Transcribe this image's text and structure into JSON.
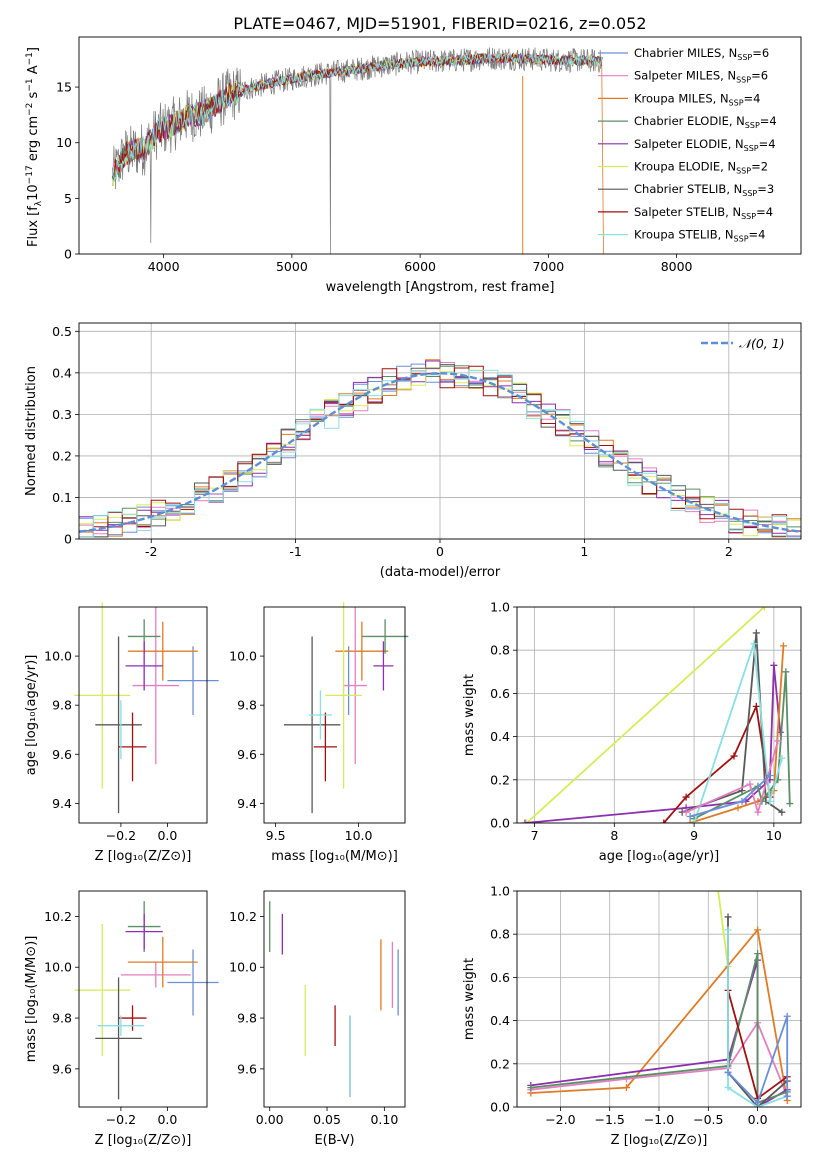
{
  "title": "PLATE=0467, MJD=51901, FIBERID=0216, z=0.052",
  "colors": {
    "chabrier_miles": "#6a8fd8",
    "salpeter_miles": "#e27fc2",
    "kroupa_miles": "#e07b25",
    "chabrier_elodie": "#5a8f66",
    "salpeter_elodie": "#8e2faf",
    "kroupa_elodie": "#d6eb5a",
    "chabrier_stelib": "#595959",
    "salpeter_stelib": "#a01010",
    "kroupa_stelib": "#8adfe2",
    "data": "#7a7a7a",
    "normal": "#5b8fd8"
  },
  "chart_data": [
    {
      "type": "line",
      "id": "spectrum",
      "xlabel": "wavelength [Angstrom, rest frame]",
      "ylabel_parts": {
        "pre": "Flux [f",
        "sub": "λ",
        "mid": "10",
        "sup1": "−17",
        "post": " erg cm",
        "sup2": "−2",
        "post2": " s",
        "sup3": "−1",
        "post3": " A",
        "sup4": "−1",
        "end": "]"
      },
      "xlim": [
        3340,
        8970
      ],
      "ylim": [
        0,
        19.5
      ],
      "xticks": [
        4000,
        5000,
        6000,
        7000,
        8000
      ],
      "yticks": [
        0,
        5,
        10,
        15
      ],
      "legend": [
        {
          "label": "Chabrier MILES, N",
          "sub": "SSP",
          "val": "=6",
          "color": "#6a8fd8"
        },
        {
          "label": "Salpeter MILES, N",
          "sub": "SSP",
          "val": "=6",
          "color": "#e27fc2"
        },
        {
          "label": "Kroupa MILES, N",
          "sub": "SSP",
          "val": "=4",
          "color": "#e07b25"
        },
        {
          "label": "Chabrier ELODIE, N",
          "sub": "SSP",
          "val": "=4",
          "color": "#5a8f66"
        },
        {
          "label": "Salpeter ELODIE, N",
          "sub": "SSP",
          "val": "=4",
          "color": "#8e2faf"
        },
        {
          "label": "Kroupa ELODIE, N",
          "sub": "SSP",
          "val": "=2",
          "color": "#d6eb5a"
        },
        {
          "label": "Chabrier STELIB, N",
          "sub": "SSP",
          "val": "=3",
          "color": "#595959"
        },
        {
          "label": "Salpeter STELIB, N",
          "sub": "SSP",
          "val": "=4",
          "color": "#a01010"
        },
        {
          "label": "Kroupa STELIB, N",
          "sub": "SSP",
          "val": "=4",
          "color": "#8adfe2"
        }
      ],
      "continuum": [
        [
          3600,
          7
        ],
        [
          3700,
          9
        ],
        [
          3850,
          9.5
        ],
        [
          3950,
          11
        ],
        [
          4050,
          11.5
        ],
        [
          4200,
          12.5
        ],
        [
          4300,
          12.6
        ],
        [
          4500,
          14.2
        ],
        [
          4700,
          15
        ],
        [
          4900,
          15.5
        ],
        [
          5100,
          16
        ],
        [
          5300,
          16.3
        ],
        [
          5500,
          16.6
        ],
        [
          5700,
          16.9
        ],
        [
          5900,
          17.2
        ],
        [
          6100,
          17.3
        ],
        [
          6300,
          17.4
        ],
        [
          6500,
          17.6
        ],
        [
          6700,
          17.6
        ],
        [
          6900,
          17.5
        ],
        [
          7100,
          17.4
        ],
        [
          7300,
          17.4
        ],
        [
          7420,
          17.3
        ]
      ]
    },
    {
      "type": "bar",
      "id": "residuals",
      "xlabel": "(data-model)/error",
      "ylabel": "Normed distribution",
      "xlim": [
        -2.5,
        2.5
      ],
      "ylim": [
        0,
        0.52
      ],
      "xticks": [
        -2,
        -1,
        0,
        1,
        2
      ],
      "yticks": [
        0.0,
        0.1,
        0.2,
        0.3,
        0.4,
        0.5
      ],
      "legend": [
        {
          "label": "𝒩(0, 1)",
          "color": "#5b8fd8"
        }
      ],
      "bin_width": 0.1,
      "bins_start": -2.5,
      "base_variation_seed": 7
    },
    {
      "type": "scatter",
      "id": "z_age",
      "xlabel": "Z [log₁₀(Z/Z⊙)]",
      "ylabel": "age  [log₁₀(age/yr)]",
      "xlim": [
        -0.38,
        0.17
      ],
      "ylim": [
        9.32,
        10.2
      ],
      "xticks": [
        -0.2,
        0.0
      ],
      "xticklabels": [
        "−0.2",
        "0.0"
      ],
      "yticks": [
        9.4,
        9.6,
        9.8,
        10.0
      ],
      "yticklabels": [
        "9.4",
        "9.6",
        "9.8",
        "10.0"
      ],
      "points": [
        {
          "x": 0.11,
          "xe": 0.11,
          "y": 9.9,
          "ye": 0.14,
          "color": "#6a8fd8"
        },
        {
          "x": -0.05,
          "xe": 0.1,
          "y": 9.88,
          "ye": 0.32,
          "color": "#e27fc2"
        },
        {
          "x": -0.02,
          "xe": 0.15,
          "y": 10.02,
          "ye": 0.12,
          "color": "#e07b25"
        },
        {
          "x": -0.1,
          "xe": 0.07,
          "y": 10.08,
          "ye": 0.07,
          "color": "#5a8f66"
        },
        {
          "x": -0.1,
          "xe": 0.08,
          "y": 9.96,
          "ye": 0.1,
          "color": "#8e2faf"
        },
        {
          "x": -0.28,
          "xe": 0.12,
          "y": 9.84,
          "ye": 0.38,
          "color": "#d6eb5a"
        },
        {
          "x": -0.21,
          "xe": 0.1,
          "y": 9.72,
          "ye": 0.36,
          "color": "#595959"
        },
        {
          "x": -0.15,
          "xe": 0.06,
          "y": 9.63,
          "ye": 0.14,
          "color": "#a01010"
        },
        {
          "x": -0.2,
          "xe": 0.0,
          "y": 9.7,
          "ye": 0.12,
          "color": "#8adfe2"
        }
      ]
    },
    {
      "type": "scatter",
      "id": "mass_age",
      "xlabel": "mass [log₁₀(M/M⊙)]",
      "ylabel": "",
      "xlim": [
        9.43,
        10.28
      ],
      "ylim": [
        9.32,
        10.2
      ],
      "xticks": [
        9.5,
        10.0
      ],
      "xticklabels": [
        "9.5",
        "10.0"
      ],
      "yticks": [
        9.4,
        9.6,
        9.8,
        10.0
      ],
      "yticklabels": [
        "9.4",
        "9.6",
        "9.8",
        "10.0"
      ],
      "points": [
        {
          "x": 9.94,
          "xe": 0.0,
          "y": 9.9,
          "ye": 0.14,
          "color": "#6a8fd8"
        },
        {
          "x": 9.98,
          "xe": 0.07,
          "y": 9.88,
          "ye": 0.32,
          "color": "#e27fc2"
        },
        {
          "x": 10.02,
          "xe": 0.16,
          "y": 10.02,
          "ye": 0.12,
          "color": "#e07b25"
        },
        {
          "x": 10.16,
          "xe": 0.14,
          "y": 10.08,
          "ye": 0.07,
          "color": "#5a8f66"
        },
        {
          "x": 10.15,
          "xe": 0.06,
          "y": 9.96,
          "ye": 0.1,
          "color": "#8e2faf"
        },
        {
          "x": 9.91,
          "xe": 0.11,
          "y": 9.84,
          "ye": 0.38,
          "color": "#d6eb5a"
        },
        {
          "x": 9.72,
          "xe": 0.17,
          "y": 9.72,
          "ye": 0.36,
          "color": "#595959"
        },
        {
          "x": 9.8,
          "xe": 0.07,
          "y": 9.63,
          "ye": 0.14,
          "color": "#a01010"
        },
        {
          "x": 9.77,
          "xe": 0.07,
          "y": 9.76,
          "ye": 0.1,
          "color": "#8adfe2"
        }
      ]
    },
    {
      "type": "line",
      "id": "age_weight",
      "xlabel": "age  [log₁₀(age/yr)]",
      "ylabel": "mass weight",
      "xlim": [
        6.78,
        10.34
      ],
      "ylim": [
        0,
        1
      ],
      "xticks": [
        7,
        8,
        9,
        10
      ],
      "xticklabels": [
        "7",
        "8",
        "9",
        "10"
      ],
      "yticks": [
        0,
        0.2,
        0.4,
        0.6,
        0.8,
        1.0
      ],
      "yticklabels": [
        "0.0",
        "0.2",
        "0.4",
        "0.6",
        "0.8",
        "1.0"
      ],
      "series": [
        {
          "color": "#d6eb5a",
          "pts": [
            [
              6.9,
              0.0
            ],
            [
              9.88,
              1.0
            ]
          ]
        },
        {
          "color": "#8e2faf",
          "pts": [
            [
              6.88,
              0.0
            ],
            [
              8.9,
              0.07
            ],
            [
              9.65,
              0.1
            ],
            [
              9.95,
              0.2
            ],
            [
              10.0,
              0.73
            ],
            [
              10.08,
              0.42
            ]
          ]
        },
        {
          "color": "#a01010",
          "pts": [
            [
              8.62,
              0.0
            ],
            [
              8.9,
              0.12
            ],
            [
              9.5,
              0.31
            ],
            [
              9.78,
              0.54
            ],
            [
              9.95,
              0.12
            ]
          ]
        },
        {
          "color": "#e07b25",
          "pts": [
            [
              8.95,
              0.0
            ],
            [
              9.55,
              0.07
            ],
            [
              9.8,
              0.1
            ],
            [
              10.0,
              0.15
            ],
            [
              10.12,
              0.82
            ]
          ]
        },
        {
          "color": "#595959",
          "pts": [
            [
              8.85,
              0.05
            ],
            [
              9.6,
              0.15
            ],
            [
              9.78,
              0.88
            ],
            [
              9.9,
              0.1
            ],
            [
              10.1,
              0.05
            ]
          ]
        },
        {
          "color": "#5a8f66",
          "pts": [
            [
              9.0,
              0.02
            ],
            [
              9.8,
              0.17
            ],
            [
              9.85,
              0.1
            ],
            [
              10.05,
              0.2
            ],
            [
              10.15,
              0.7
            ],
            [
              10.2,
              0.09
            ]
          ]
        },
        {
          "color": "#8adfe2",
          "pts": [
            [
              9.0,
              0.0
            ],
            [
              9.75,
              0.83
            ],
            [
              9.95,
              0.1
            ],
            [
              10.1,
              0.3
            ]
          ]
        },
        {
          "color": "#e27fc2",
          "pts": [
            [
              8.9,
              0.05
            ],
            [
              9.7,
              0.18
            ],
            [
              9.8,
              0.05
            ],
            [
              10.05,
              0.38
            ]
          ]
        },
        {
          "color": "#6a8fd8",
          "pts": [
            [
              8.95,
              0.03
            ],
            [
              9.6,
              0.1
            ],
            [
              9.95,
              0.22
            ]
          ]
        }
      ]
    },
    {
      "type": "scatter",
      "id": "z_mass",
      "xlabel": "Z [log₁₀(Z/Z⊙)]",
      "ylabel": "mass [log₁₀(M/M⊙)]",
      "xlim": [
        -0.38,
        0.17
      ],
      "ylim": [
        9.45,
        10.3
      ],
      "xticks": [
        -0.2,
        0.0
      ],
      "xticklabels": [
        "−0.2",
        "0.0"
      ],
      "yticks": [
        9.6,
        9.8,
        10.0,
        10.2
      ],
      "yticklabels": [
        "9.6",
        "9.8",
        "10.0",
        "10.2"
      ],
      "points": [
        {
          "x": 0.11,
          "xe": 0.11,
          "y": 9.94,
          "ye": 0.13,
          "color": "#6a8fd8"
        },
        {
          "x": -0.05,
          "xe": 0.15,
          "y": 9.97,
          "ye": 0.05,
          "color": "#e27fc2"
        },
        {
          "x": -0.02,
          "xe": 0.15,
          "y": 10.02,
          "ye": 0.1,
          "color": "#e07b25"
        },
        {
          "x": -0.1,
          "xe": 0.07,
          "y": 10.16,
          "ye": 0.1,
          "color": "#5a8f66"
        },
        {
          "x": -0.1,
          "xe": 0.08,
          "y": 10.14,
          "ye": 0.07,
          "color": "#8e2faf"
        },
        {
          "x": -0.28,
          "xe": 0.12,
          "y": 9.91,
          "ye": 0.26,
          "color": "#d6eb5a"
        },
        {
          "x": -0.21,
          "xe": 0.1,
          "y": 9.72,
          "ye": 0.24,
          "color": "#595959"
        },
        {
          "x": -0.15,
          "xe": 0.06,
          "y": 9.8,
          "ye": 0.05,
          "color": "#a01010"
        },
        {
          "x": -0.2,
          "xe": 0.1,
          "y": 9.77,
          "ye": 0.04,
          "color": "#8adfe2"
        }
      ]
    },
    {
      "type": "scatter",
      "id": "ebv_mass",
      "xlabel": "E(B-V)",
      "ylabel": "",
      "xlim": [
        -0.005,
        0.118
      ],
      "ylim": [
        9.45,
        10.3
      ],
      "xticks": [
        0.0,
        0.05,
        0.1
      ],
      "xticklabels": [
        "0.00",
        "0.05",
        "0.10"
      ],
      "yticks": [
        9.6,
        9.8,
        10.0,
        10.2
      ],
      "yticklabels": [
        "9.6",
        "9.8",
        "10.0",
        "10.2"
      ],
      "points": [
        {
          "x": 0.112,
          "xe": 0,
          "y": 9.94,
          "ye": 0.13,
          "color": "#6a8fd8"
        },
        {
          "x": 0.107,
          "xe": 0,
          "y": 9.97,
          "ye": 0.13,
          "color": "#e27fc2"
        },
        {
          "x": 0.097,
          "xe": 0,
          "y": 9.97,
          "ye": 0.14,
          "color": "#e07b25"
        },
        {
          "x": 0.0,
          "xe": 0,
          "y": 10.16,
          "ye": 0.1,
          "color": "#5a8f66"
        },
        {
          "x": 0.011,
          "xe": 0,
          "y": 10.13,
          "ye": 0.08,
          "color": "#8e2faf"
        },
        {
          "x": 0.031,
          "xe": 0,
          "y": 9.79,
          "ye": 0.14,
          "color": "#d6eb5a"
        },
        {
          "x": 0.07,
          "xe": 0,
          "y": 9.65,
          "ye": 0.16,
          "color": "#595959"
        },
        {
          "x": 0.057,
          "xe": 0,
          "y": 9.77,
          "ye": 0.08,
          "color": "#a01010"
        },
        {
          "x": 0.07,
          "xe": 0,
          "y": 9.65,
          "ye": 0.16,
          "color": "#8adfe2"
        }
      ]
    },
    {
      "type": "line",
      "id": "z_weight",
      "xlabel": "Z [log₁₀(Z/Z⊙)]",
      "ylabel": "mass weight",
      "xlim": [
        -2.44,
        0.44
      ],
      "ylim": [
        0,
        1
      ],
      "xticks": [
        -2.0,
        -1.5,
        -1.0,
        -0.5,
        0.0
      ],
      "xticklabels": [
        "−2.0",
        "−1.5",
        "−1.0",
        "−0.5",
        "0.0"
      ],
      "yticks": [
        0,
        0.2,
        0.4,
        0.6,
        0.8,
        1.0
      ],
      "yticklabels": [
        "0.0",
        "0.2",
        "0.4",
        "0.6",
        "0.8",
        "1.0"
      ],
      "series": [
        {
          "color": "#d6eb5a",
          "pts": [
            [
              -0.4,
              1.0
            ],
            [
              -0.3,
              0.65
            ]
          ]
        },
        {
          "color": "#e07b25",
          "pts": [
            [
              -2.3,
              0.065
            ],
            [
              -1.33,
              0.09
            ],
            [
              0.0,
              0.82
            ],
            [
              0.3,
              0.03
            ]
          ]
        },
        {
          "color": "#e27fc2",
          "pts": [
            [
              -2.3,
              0.08
            ],
            [
              -1.33,
              0.13
            ],
            [
              -0.3,
              0.18
            ],
            [
              0.0,
              0.39
            ],
            [
              0.3,
              0.05
            ]
          ]
        },
        {
          "color": "#8e2faf",
          "pts": [
            [
              -2.3,
              0.1
            ],
            [
              -0.3,
              0.22
            ],
            [
              0.0,
              0.68
            ],
            [
              0.0,
              0.0
            ],
            [
              0.3,
              0.08
            ]
          ]
        },
        {
          "color": "#5a8f66",
          "pts": [
            [
              -2.3,
              0.09
            ],
            [
              -0.3,
              0.19
            ],
            [
              0.0,
              0.71
            ],
            [
              0.0,
              0.02
            ],
            [
              0.3,
              0.07
            ]
          ]
        },
        {
          "color": "#595959",
          "pts": [
            [
              -0.3,
              0.88
            ],
            [
              -0.3,
              0.16
            ],
            [
              0.0,
              0.0
            ],
            [
              0.3,
              0.12
            ]
          ]
        },
        {
          "color": "#a01010",
          "pts": [
            [
              -0.3,
              0.54
            ],
            [
              0.0,
              0.04
            ],
            [
              0.3,
              0.14
            ]
          ]
        },
        {
          "color": "#8adfe2",
          "pts": [
            [
              -0.3,
              0.82
            ],
            [
              -0.3,
              0.09
            ],
            [
              0.0,
              0.0
            ],
            [
              0.3,
              0.05
            ]
          ]
        },
        {
          "color": "#6a8fd8",
          "pts": [
            [
              -0.3,
              0.16
            ],
            [
              0.0,
              0.02
            ],
            [
              0.3,
              0.42
            ],
            [
              0.3,
              0.05
            ]
          ]
        }
      ]
    }
  ]
}
